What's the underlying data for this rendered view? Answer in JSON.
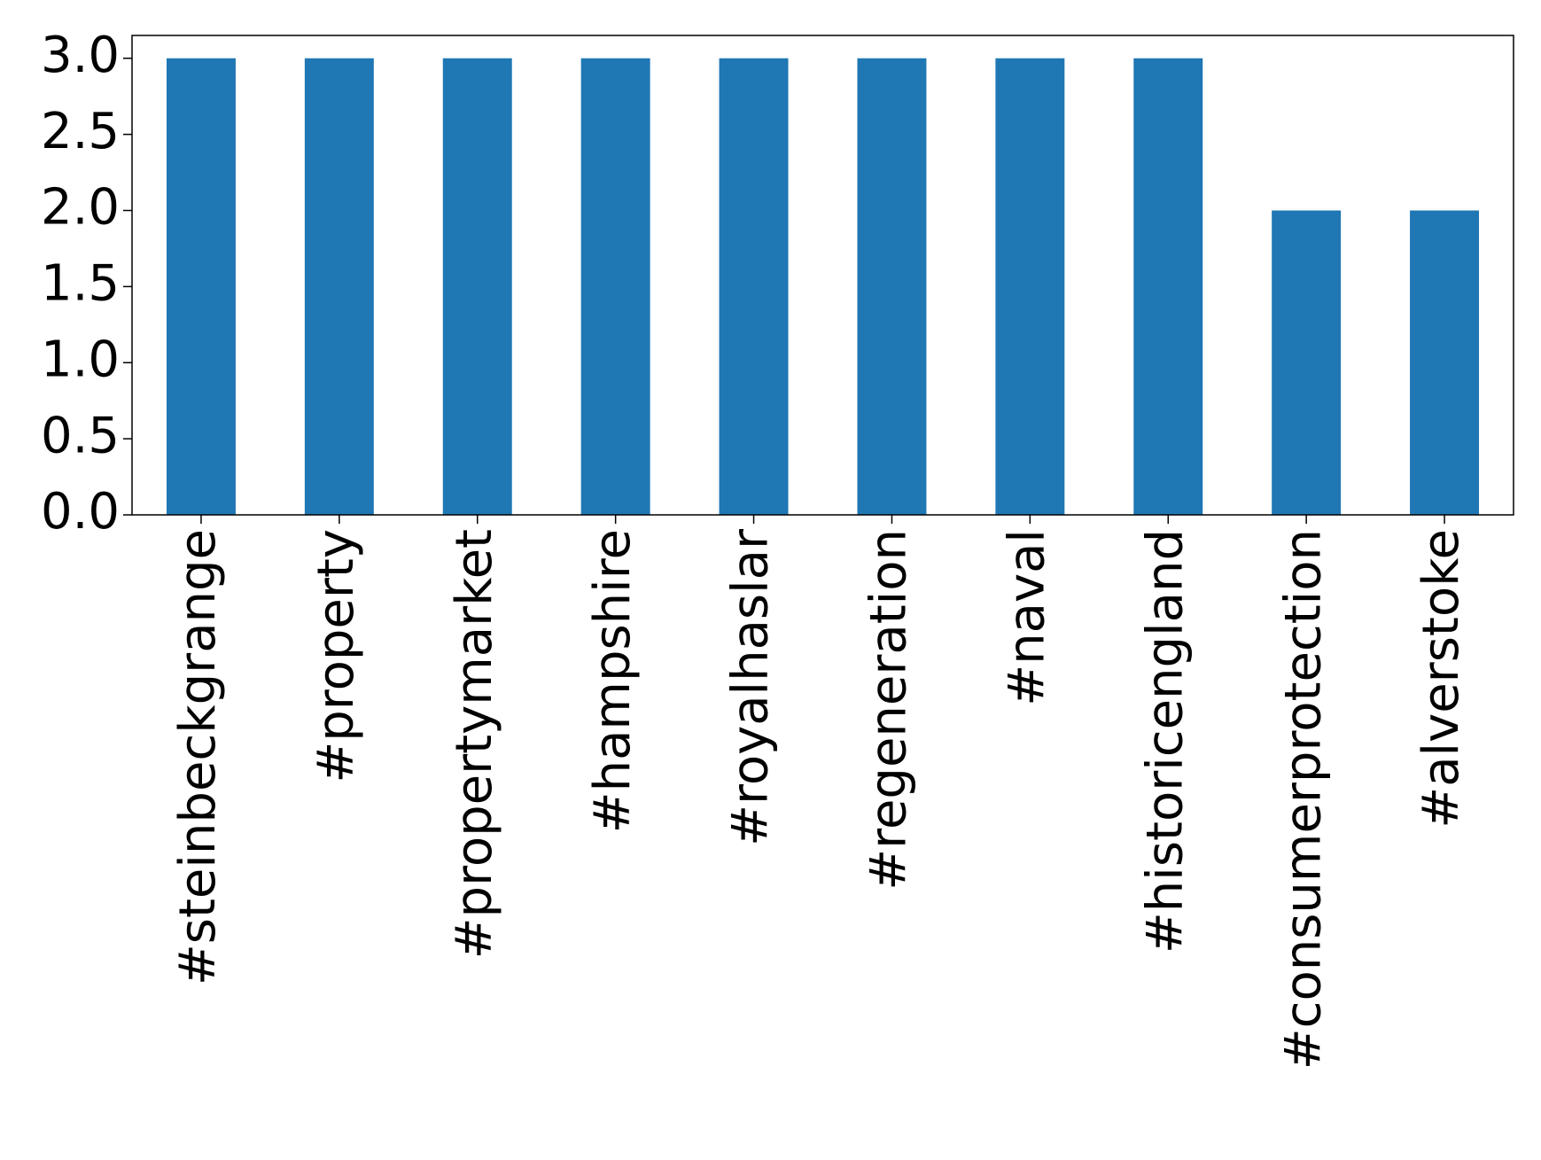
{
  "chart_data": {
    "type": "bar",
    "categories": [
      "#steinbeckgrange",
      "#property",
      "#propertymarket",
      "#hampshire",
      "#royalhaslar",
      "#regeneration",
      "#naval",
      "#historicengland",
      "#consumerprotection",
      "#alverstoke"
    ],
    "values": [
      3,
      3,
      3,
      3,
      3,
      3,
      3,
      3,
      2,
      2
    ],
    "color": "#1f77b4",
    "ylim": [
      0,
      3.15
    ],
    "yticks": [
      {
        "value": 0,
        "label": "0.0"
      },
      {
        "value": 0.5,
        "label": "0.5"
      },
      {
        "value": 1,
        "label": "1.0"
      },
      {
        "value": 1.5,
        "label": "1.5"
      },
      {
        "value": 2,
        "label": "2.0"
      },
      {
        "value": 2.5,
        "label": "2.5"
      },
      {
        "value": 3,
        "label": "3.0"
      }
    ],
    "grid": false
  }
}
